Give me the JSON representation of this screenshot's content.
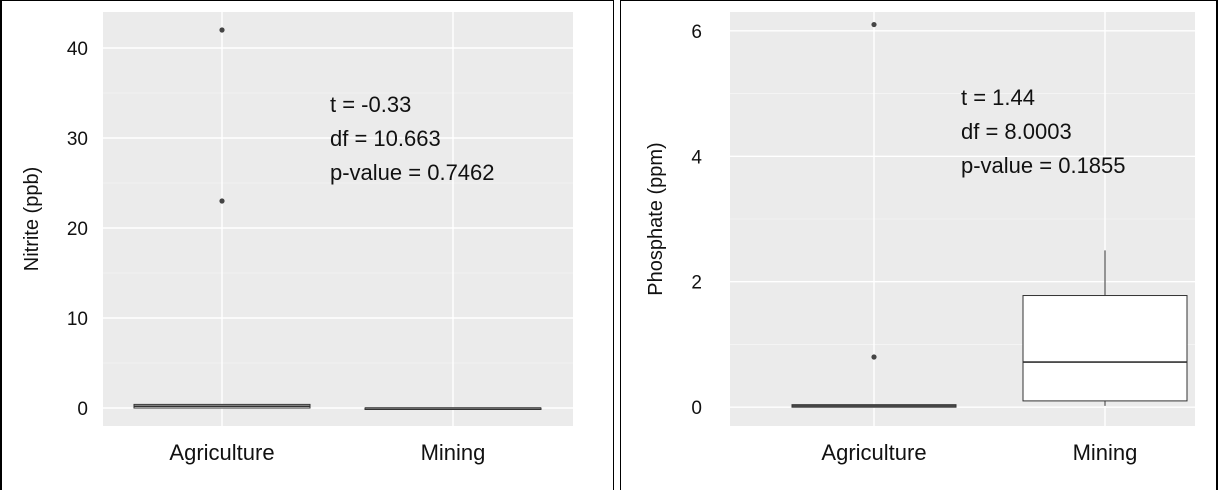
{
  "chart_data": [
    {
      "type": "box",
      "title": "",
      "xlabel": "",
      "ylabel": "Nitrite (ppb)",
      "ylim": [
        -2,
        44
      ],
      "yticks": [
        0,
        10,
        20,
        30,
        40
      ],
      "ytick_labels": [
        "0",
        "10",
        "20",
        "30",
        "40"
      ],
      "categories": [
        "Agriculture",
        "Mining"
      ],
      "boxes": [
        {
          "category": "Agriculture",
          "min": 0,
          "q1": 0,
          "median": 0.2,
          "q3": 0.4,
          "max": 0.4,
          "outliers": [
            23,
            42
          ]
        },
        {
          "category": "Mining",
          "min": 0,
          "q1": 0,
          "median": 0,
          "q3": 0,
          "max": 0,
          "outliers": []
        }
      ],
      "annotations": [
        "t = -0.33",
        "df = 10.663",
        "p-value = 0.7462"
      ],
      "grid": true,
      "colors": {
        "panel": "#ebebeb",
        "grid": "#ffffff",
        "box_fill": "#ffffff",
        "box_line": "#333333",
        "point": "#444444"
      }
    },
    {
      "type": "box",
      "title": "",
      "xlabel": "",
      "ylabel": "Phosphate (ppm)",
      "ylim": [
        -0.3,
        6.3
      ],
      "yticks": [
        0,
        2,
        4,
        6
      ],
      "ytick_labels": [
        "0",
        "2",
        "4",
        "6"
      ],
      "categories": [
        "Agriculture",
        "Mining"
      ],
      "boxes": [
        {
          "category": "Agriculture",
          "min": 0,
          "q1": 0,
          "median": 0.02,
          "q3": 0.04,
          "max": 0.04,
          "outliers": [
            0.8,
            6.1
          ]
        },
        {
          "category": "Mining",
          "min": 0.02,
          "q1": 0.1,
          "median": 0.72,
          "q3": 1.78,
          "max": 2.5,
          "outliers": []
        }
      ],
      "annotations": [
        "t = 1.44",
        "df = 8.0003",
        "p-value = 0.1855"
      ],
      "grid": true,
      "colors": {
        "panel": "#ebebeb",
        "grid": "#ffffff",
        "box_fill": "#ffffff",
        "box_line": "#333333",
        "point": "#444444"
      }
    }
  ]
}
